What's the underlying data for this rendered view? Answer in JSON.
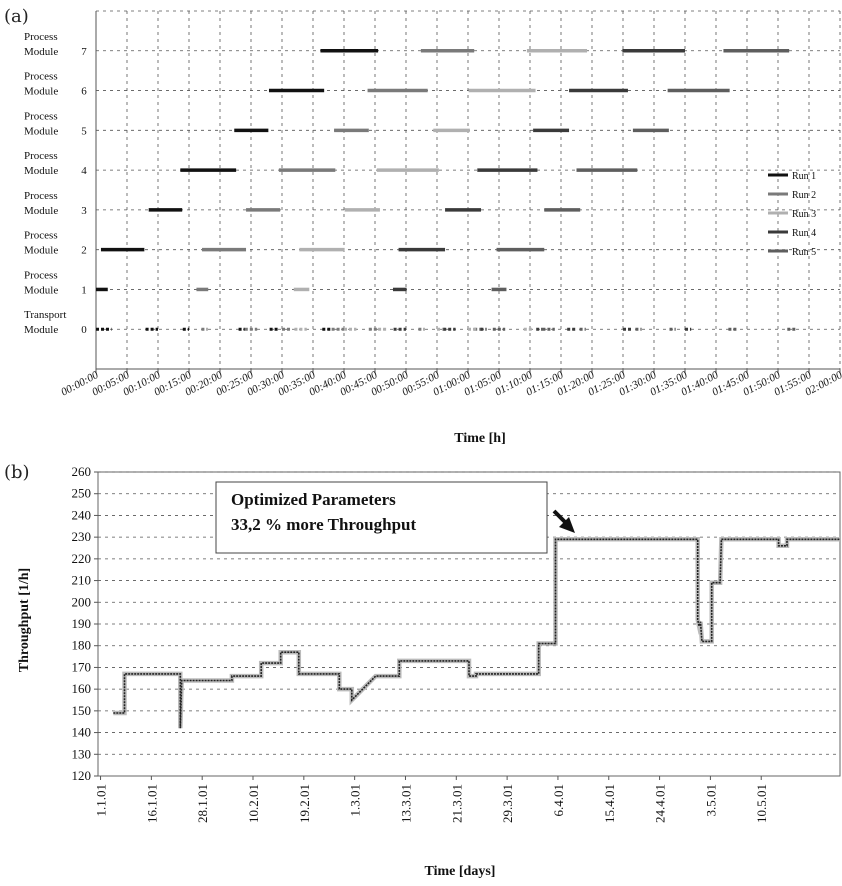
{
  "chart_data": [
    {
      "panel_label": "(a)",
      "type": "gantt",
      "ylabel": "",
      "xlabel": "Time [h]",
      "x_ticks": [
        "00:00:00",
        "00:05:00",
        "00:10:00",
        "00:15:00",
        "00:20:00",
        "00:25:00",
        "00:30:00",
        "00:35:00",
        "00:40:00",
        "00:45:00",
        "00:50:00",
        "00:55:00",
        "01:00:00",
        "01:05:00",
        "01:10:00",
        "01:15:00",
        "01:20:00",
        "01:25:00",
        "01:30:00",
        "01:35:00",
        "01:40:00",
        "01:45:00",
        "01:50:00",
        "01:55:00",
        "02:00:00"
      ],
      "xlim_minutes": [
        0,
        120
      ],
      "ylim": [
        -1,
        8
      ],
      "y_ticks": [
        0,
        1,
        2,
        3,
        4,
        5,
        6,
        7
      ],
      "rows": [
        {
          "index": 7,
          "line1": "Process",
          "line2": "Module"
        },
        {
          "index": 6,
          "line1": "Process",
          "line2": "Module"
        },
        {
          "index": 5,
          "line1": "Process",
          "line2": "Module"
        },
        {
          "index": 4,
          "line1": "Process",
          "line2": "Module"
        },
        {
          "index": 3,
          "line1": "Process",
          "line2": "Module"
        },
        {
          "index": 2,
          "line1": "Process",
          "line2": "Module"
        },
        {
          "index": 1,
          "line1": "Process",
          "line2": "Module"
        },
        {
          "index": 0,
          "line1": "Transport",
          "line2": "Module"
        }
      ],
      "legend_position": "right",
      "series": [
        {
          "name": "Run 1",
          "color": "#111111",
          "segments": [
            [
              1,
              0,
              1.9
            ],
            [
              2,
              0.8,
              7.8
            ],
            [
              3,
              8.5,
              13.9
            ],
            [
              4,
              13.6,
              22.6
            ],
            [
              5,
              22.3,
              27.8
            ],
            [
              6,
              27.9,
              36.8
            ],
            [
              7,
              36.2,
              45.5
            ]
          ],
          "transport": [
            [
              0,
              2.5
            ],
            [
              8,
              10
            ],
            [
              14,
              15
            ],
            [
              23,
              24
            ],
            [
              28,
              29.5
            ],
            [
              36.5,
              38
            ]
          ]
        },
        {
          "name": "Run 2",
          "color": "#7a7a7a",
          "segments": [
            [
              1,
              16.2,
              18.1
            ],
            [
              2,
              17.1,
              24.2
            ],
            [
              3,
              24.2,
              29.7
            ],
            [
              4,
              29.5,
              38.6
            ],
            [
              5,
              38.4,
              44
            ],
            [
              6,
              43.8,
              53.5
            ],
            [
              7,
              52.4,
              61
            ]
          ],
          "transport": [
            [
              17,
              18
            ],
            [
              24,
              26
            ],
            [
              30,
              31.5
            ],
            [
              38,
              40
            ],
            [
              44,
              45.5
            ],
            [
              52,
              53
            ],
            [
              61,
              62.5
            ]
          ]
        },
        {
          "name": "Run 3",
          "color": "#b0b0b0",
          "segments": [
            [
              1,
              31.9,
              34.4
            ],
            [
              2,
              32.8,
              40.1
            ],
            [
              3,
              40.1,
              45.8
            ],
            [
              4,
              45.3,
              55.3
            ],
            [
              5,
              54.4,
              60.3
            ],
            [
              6,
              60.1,
              70.9
            ],
            [
              7,
              69.5,
              79.2
            ]
          ],
          "transport": [
            [
              32,
              34
            ],
            [
              40,
              42
            ],
            [
              45.5,
              47
            ],
            [
              55,
              56.5
            ],
            [
              60,
              61.5
            ],
            [
              69,
              70.5
            ]
          ]
        },
        {
          "name": "Run 4",
          "color": "#3a3a3a",
          "segments": [
            [
              1,
              47.9,
              50.1
            ],
            [
              2,
              48.8,
              56.3
            ],
            [
              3,
              56.3,
              62.1
            ],
            [
              4,
              61.5,
              71.2
            ],
            [
              5,
              70.5,
              76.3
            ],
            [
              6,
              76.3,
              85.8
            ],
            [
              7,
              84.9,
              95
            ]
          ],
          "transport": [
            [
              48,
              50
            ],
            [
              56,
              58
            ],
            [
              62,
              63
            ],
            [
              71,
              72
            ],
            [
              76,
              77.5
            ],
            [
              85,
              86.5
            ],
            [
              95,
              96
            ]
          ]
        },
        {
          "name": "Run 5",
          "color": "#5e5e5e",
          "segments": [
            [
              1,
              63.8,
              66.2
            ],
            [
              2,
              64.6,
              72.3
            ],
            [
              3,
              72.3,
              78.1
            ],
            [
              4,
              77.5,
              87.3
            ],
            [
              5,
              86.6,
              92.4
            ],
            [
              6,
              92.2,
              102.2
            ],
            [
              7,
              101.2,
              111.8
            ]
          ],
          "transport": [
            [
              64,
              66
            ],
            [
              72,
              74
            ],
            [
              78,
              79
            ],
            [
              87,
              88
            ],
            [
              92.5,
              93.5
            ],
            [
              102,
              103.5
            ],
            [
              111.5,
              113
            ]
          ]
        }
      ]
    },
    {
      "panel_label": "(b)",
      "type": "line",
      "xlabel": "Time [days]",
      "ylabel": "Throughput [1/h]",
      "ylim": [
        120,
        260
      ],
      "y_ticks": [
        120,
        130,
        140,
        150,
        160,
        170,
        180,
        190,
        200,
        210,
        220,
        230,
        240,
        250,
        260
      ],
      "x_tick_labels": [
        "1.1.01",
        "16.1.01",
        "28.1.01",
        "10.2.01",
        "19.2.01",
        "1.3.01",
        "13.3.01",
        "21.3.01",
        "29.3.01",
        "6.4.01",
        "15.4.01",
        "24.4.01",
        "3.5.01",
        "10.5.01"
      ],
      "x_range_index": [
        0,
        14.6
      ],
      "grid": true,
      "annotation": {
        "line1": "Optimized Parameters",
        "line2": "33,2 % more Throughput"
      },
      "series": [
        {
          "name": "",
          "color": "#222222",
          "x": [
            0.55,
            0.95,
            0.95,
            1.65,
            2.95,
            2.95,
            3.0,
            4.8,
            4.8,
            5.85,
            5.85,
            6.55,
            6.55,
            7.2,
            7.2,
            7.9,
            7.9,
            8.1,
            8.3,
            8.65,
            8.65,
            9.1,
            9.1,
            9.95,
            10.8,
            10.8,
            12.3,
            12.6,
            12.9,
            13.0,
            13.05,
            13.1,
            13.2,
            13.3,
            13.3,
            13.55,
            13.55,
            13.9,
            14.4,
            14.9,
            15.15,
            15.8,
            15.8,
            16.4,
            16.4,
            16.95,
            17.05,
            17.25,
            18.6,
            21.3,
            21.5,
            21.5,
            21.55,
            21.6,
            21.65,
            22.0,
            22.0,
            22.3,
            22.35,
            24.0,
            24.4,
            24.4,
            24.7,
            24.7,
            26.6
          ],
          "y": [
            149,
            149,
            167,
            167,
            167,
            142,
            164,
            164,
            166,
            166,
            172,
            172,
            177,
            177,
            167,
            167,
            167,
            167,
            167,
            167,
            160,
            160,
            155,
            166,
            166,
            173,
            173,
            173,
            173,
            173,
            173,
            173,
            173,
            173,
            166,
            166,
            167,
            167,
            167,
            167,
            167,
            167,
            181,
            181,
            229,
            229,
            229,
            229,
            229,
            229,
            229,
            192,
            189,
            191,
            182,
            182,
            209,
            209,
            229,
            229,
            229,
            226,
            226,
            229,
            229
          ]
        }
      ]
    }
  ]
}
